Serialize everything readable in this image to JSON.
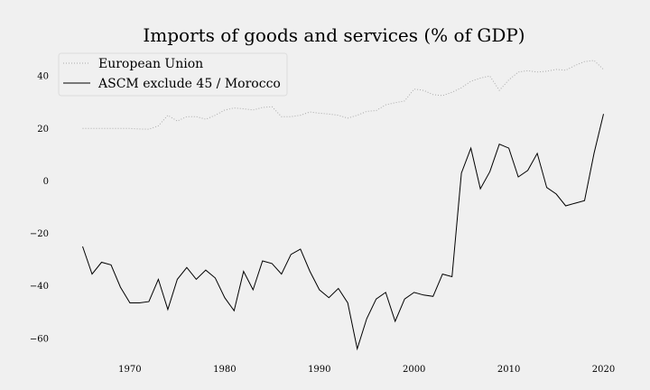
{
  "chart_data": {
    "type": "line",
    "title": "Imports of goods and services (% of GDP)",
    "xlabel": "",
    "ylabel": "",
    "xlim": [
      1962,
      2023
    ],
    "ylim": [
      -68,
      49
    ],
    "x_ticks": [
      1970,
      1980,
      1990,
      2000,
      2010,
      2020
    ],
    "y_ticks": [
      40,
      20,
      0,
      -20,
      -40,
      -60
    ],
    "grid": false,
    "legend_position": "top-left",
    "x": [
      1965,
      1966,
      1967,
      1968,
      1969,
      1970,
      1971,
      1972,
      1973,
      1974,
      1975,
      1976,
      1977,
      1978,
      1979,
      1980,
      1981,
      1982,
      1983,
      1984,
      1985,
      1986,
      1987,
      1988,
      1989,
      1990,
      1991,
      1992,
      1993,
      1994,
      1995,
      1996,
      1997,
      1998,
      1999,
      2000,
      2001,
      2002,
      2003,
      2004,
      2005,
      2006,
      2007,
      2008,
      2009,
      2010,
      2011,
      2012,
      2013,
      2014,
      2015,
      2016,
      2017,
      2018,
      2019,
      2020
    ],
    "series": [
      {
        "name": "European Union",
        "color": "#aaaaaa",
        "style": "dotted",
        "values": [
          20.0,
          20.0,
          20.0,
          20.0,
          20.0,
          20.0,
          19.8,
          19.7,
          21.0,
          25.0,
          22.8,
          24.5,
          24.5,
          23.5,
          25.0,
          27.0,
          27.8,
          27.5,
          27.0,
          28.0,
          28.3,
          24.5,
          24.5,
          25.0,
          26.3,
          25.8,
          25.5,
          25.0,
          23.9,
          25.0,
          26.5,
          26.8,
          29.0,
          29.8,
          30.5,
          35.0,
          34.5,
          32.9,
          32.5,
          33.8,
          35.5,
          38.0,
          39.2,
          40.0,
          34.5,
          38.5,
          41.5,
          42.0,
          41.5,
          41.8,
          42.5,
          42.2,
          44.0,
          45.5,
          45.9,
          42.5
        ]
      },
      {
        "name": "ASCM exclude 45 / Morocco",
        "color": "#000000",
        "style": "solid",
        "values": [
          -25.0,
          -35.5,
          -31.0,
          -32.0,
          -40.5,
          -46.5,
          -46.5,
          -46.0,
          -37.5,
          -49.0,
          -37.5,
          -33.0,
          -37.5,
          -34.0,
          -37.0,
          -44.5,
          -49.5,
          -34.5,
          -41.5,
          -30.5,
          -31.5,
          -35.5,
          -28.0,
          -26.0,
          -34.5,
          -41.5,
          -44.5,
          -41.0,
          -46.5,
          -64.0,
          -52.5,
          -45.0,
          -42.5,
          -53.5,
          -45.0,
          -42.5,
          -43.5,
          -44.0,
          -35.5,
          -36.5,
          3.0,
          12.5,
          -3.0,
          3.5,
          14.0,
          12.5,
          1.5,
          4.0,
          10.5,
          -2.5,
          -5.0,
          -9.5,
          -8.5,
          -7.5,
          10.5,
          25.5
        ]
      }
    ]
  }
}
